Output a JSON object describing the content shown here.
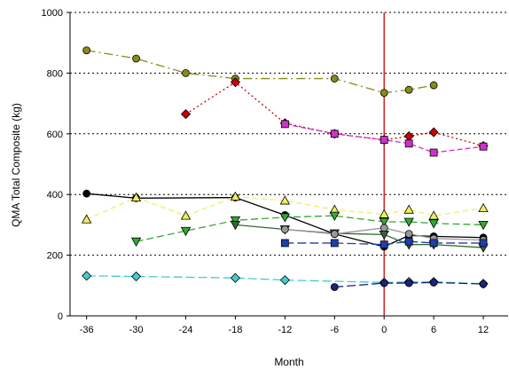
{
  "chart_data": {
    "type": "line",
    "title": "",
    "xlabel": "Month",
    "ylabel": "QMA Total Composite (kg)",
    "xlim": [
      -38,
      15
    ],
    "ylim": [
      0,
      1000
    ],
    "xticks": [
      "-36",
      "-30",
      "-24",
      "-18",
      "-12",
      "-6",
      "0",
      "6",
      "12"
    ],
    "yticks": [
      "0",
      "200",
      "400",
      "600",
      "800",
      "1000"
    ],
    "reference_line_x": 0,
    "reference_line_color": "#cc0000",
    "grid": "horizontal dotted",
    "series": [
      {
        "color": "#8a8a1a",
        "marker": "circle",
        "dash": "10,4,2,4",
        "x": [
          -36,
          -30,
          -24,
          -18,
          -6,
          0,
          3,
          6
        ],
        "y": [
          875,
          848,
          800,
          782,
          782,
          735,
          745,
          760
        ]
      },
      {
        "color": "#cc0000",
        "marker": "diamond",
        "dash": "2,3",
        "x": [
          -24,
          -18,
          -12,
          -6,
          0,
          3,
          6,
          12
        ],
        "y": [
          665,
          770,
          635,
          600,
          580,
          592,
          605,
          560
        ]
      },
      {
        "color": "#cc33cc",
        "marker": "square",
        "dash": "6,3",
        "x": [
          -12,
          -6,
          0,
          3,
          6,
          12
        ],
        "y": [
          632,
          600,
          580,
          568,
          538,
          558
        ]
      },
      {
        "color": "#000000",
        "marker": "circle",
        "dash": "",
        "x": [
          -36,
          -30,
          -18,
          -12,
          -6,
          0,
          3,
          6,
          12
        ],
        "y": [
          403,
          388,
          390,
          332,
          270,
          228,
          265,
          262,
          258
        ]
      },
      {
        "color": "#eeee66",
        "marker": "triangle-up",
        "dash": "6,4",
        "x": [
          -36,
          -30,
          -24,
          -18,
          -12,
          -6,
          0,
          3,
          6,
          12
        ],
        "y": [
          318,
          390,
          330,
          393,
          380,
          350,
          335,
          350,
          330,
          355
        ]
      },
      {
        "color": "#33aa33",
        "marker": "triangle-down",
        "dash": "8,4",
        "x": [
          -30,
          -24,
          -18,
          -12,
          -6,
          0,
          3,
          6,
          12
        ],
        "y": [
          245,
          280,
          315,
          325,
          330,
          310,
          310,
          305,
          300
        ]
      },
      {
        "color": "#336633",
        "marker": "triangle-down",
        "dash": "",
        "x": [
          -18,
          -12,
          -6,
          0,
          3,
          6,
          12
        ],
        "y": [
          300,
          285,
          272,
          268,
          235,
          235,
          225
        ]
      },
      {
        "color": "#999999",
        "marker": "circle",
        "dash": "",
        "x": [
          -12,
          -6,
          0,
          3,
          6,
          12
        ],
        "y": [
          285,
          270,
          290,
          270,
          255,
          250
        ]
      },
      {
        "color": "#1f3faa",
        "marker": "square",
        "dash": "10,4",
        "x": [
          -12,
          -6,
          0,
          3,
          6,
          12
        ],
        "y": [
          240,
          240,
          235,
          245,
          240,
          240
        ]
      },
      {
        "color": "#44cccc",
        "marker": "diamond",
        "dash": "10,4",
        "x": [
          -36,
          -30,
          -18,
          -12,
          0,
          3,
          6,
          12
        ],
        "y": [
          132,
          130,
          125,
          118,
          110,
          112,
          112,
          106
        ]
      },
      {
        "color": "#1a237e",
        "marker": "circle",
        "dash": "10,4",
        "x": [
          -6,
          0,
          3,
          6,
          12
        ],
        "y": [
          95,
          108,
          108,
          110,
          105
        ]
      }
    ]
  }
}
